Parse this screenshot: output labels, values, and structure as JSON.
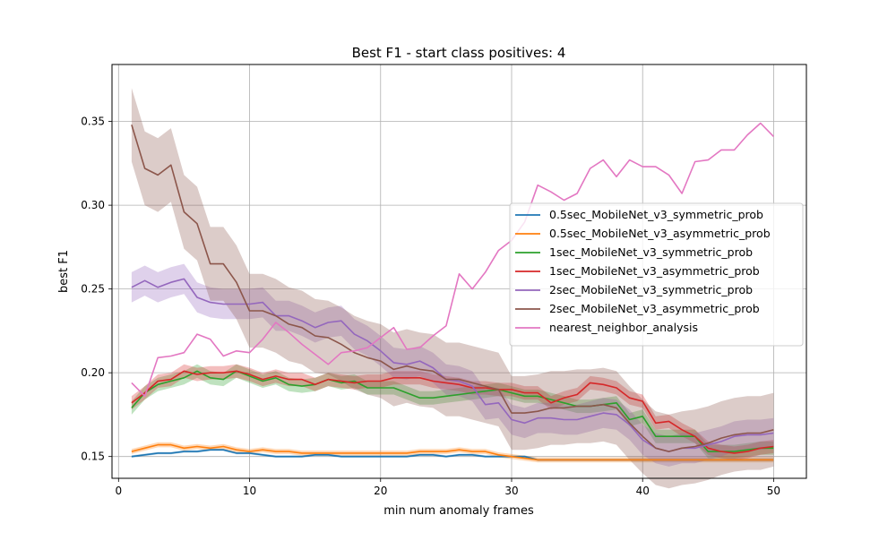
{
  "chart_data": {
    "type": "line",
    "title": "Best F1 - start class positives: 4",
    "xlabel": "min num anomaly frames",
    "ylabel": "best F1",
    "xlim": [
      -0.5,
      52.5
    ],
    "ylim": [
      0.137,
      0.384
    ],
    "x_ticks": [
      0,
      10,
      20,
      30,
      40,
      50
    ],
    "y_ticks": [
      0.15,
      0.2,
      0.25,
      0.3,
      0.35
    ],
    "x_tick_labels": [
      "0",
      "10",
      "20",
      "30",
      "40",
      "50"
    ],
    "y_tick_labels": [
      "0.15",
      "0.20",
      "0.25",
      "0.30",
      "0.35"
    ],
    "grid": true,
    "legend_position": "center-right",
    "x": [
      1,
      2,
      3,
      4,
      5,
      6,
      7,
      8,
      9,
      10,
      11,
      12,
      13,
      14,
      15,
      16,
      17,
      18,
      19,
      20,
      21,
      22,
      23,
      24,
      25,
      26,
      27,
      28,
      29,
      30,
      31,
      32,
      33,
      34,
      35,
      36,
      37,
      38,
      39,
      40,
      41,
      42,
      43,
      44,
      45,
      46,
      47,
      48,
      49,
      50
    ],
    "series": [
      {
        "name": "0.5sec_MobileNet_v3_symmetric_prob",
        "color": "#1f77b4",
        "band": 0.0007,
        "values": [
          0.15,
          0.151,
          0.152,
          0.152,
          0.153,
          0.153,
          0.154,
          0.154,
          0.152,
          0.152,
          0.151,
          0.15,
          0.15,
          0.15,
          0.151,
          0.151,
          0.15,
          0.15,
          0.15,
          0.15,
          0.15,
          0.15,
          0.151,
          0.151,
          0.15,
          0.151,
          0.151,
          0.15,
          0.15,
          0.15,
          0.15,
          0.148,
          0.148,
          0.148,
          0.148,
          0.148,
          0.148,
          0.148,
          0.148,
          0.148,
          0.148,
          0.148,
          0.148,
          0.148,
          0.148,
          0.148,
          0.148,
          0.148,
          0.148,
          0.148
        ]
      },
      {
        "name": "0.5sec_MobileNet_v3_asymmetric_prob",
        "color": "#ff7f0e",
        "band": 0.0015,
        "values": [
          0.153,
          0.155,
          0.157,
          0.157,
          0.155,
          0.156,
          0.155,
          0.156,
          0.154,
          0.153,
          0.154,
          0.153,
          0.153,
          0.152,
          0.152,
          0.152,
          0.152,
          0.152,
          0.152,
          0.152,
          0.152,
          0.152,
          0.153,
          0.153,
          0.153,
          0.154,
          0.153,
          0.153,
          0.151,
          0.15,
          0.149,
          0.148,
          0.148,
          0.148,
          0.148,
          0.148,
          0.148,
          0.148,
          0.148,
          0.148,
          0.148,
          0.148,
          0.148,
          0.148,
          0.148,
          0.148,
          0.148,
          0.148,
          0.148,
          0.148
        ]
      },
      {
        "name": "1sec_MobileNet_v3_symmetric_prob",
        "color": "#2ca02c",
        "band": 0.004,
        "values": [
          0.179,
          0.188,
          0.193,
          0.195,
          0.197,
          0.201,
          0.197,
          0.196,
          0.201,
          0.198,
          0.195,
          0.197,
          0.193,
          0.192,
          0.193,
          0.196,
          0.194,
          0.195,
          0.191,
          0.191,
          0.191,
          0.188,
          0.185,
          0.185,
          0.186,
          0.187,
          0.188,
          0.189,
          0.19,
          0.188,
          0.186,
          0.186,
          0.184,
          0.182,
          0.18,
          0.18,
          0.181,
          0.182,
          0.172,
          0.174,
          0.162,
          0.162,
          0.162,
          0.162,
          0.153,
          0.153,
          0.153,
          0.154,
          0.155,
          0.155
        ]
      },
      {
        "name": "1sec_MobileNet_v3_asymmetric_prob",
        "color": "#d62728",
        "band": 0.004,
        "values": [
          0.182,
          0.188,
          0.195,
          0.196,
          0.201,
          0.199,
          0.2,
          0.2,
          0.201,
          0.199,
          0.196,
          0.198,
          0.196,
          0.196,
          0.193,
          0.196,
          0.195,
          0.194,
          0.195,
          0.195,
          0.197,
          0.197,
          0.197,
          0.195,
          0.194,
          0.193,
          0.191,
          0.191,
          0.19,
          0.19,
          0.188,
          0.188,
          0.182,
          0.185,
          0.187,
          0.194,
          0.193,
          0.191,
          0.185,
          0.183,
          0.17,
          0.171,
          0.166,
          0.162,
          0.155,
          0.153,
          0.152,
          0.153,
          0.155,
          0.156
        ]
      },
      {
        "name": "2sec_MobileNet_v3_symmetric_prob",
        "color": "#9467bd",
        "band": 0.009,
        "values": [
          0.251,
          0.255,
          0.251,
          0.254,
          0.256,
          0.245,
          0.242,
          0.241,
          0.241,
          0.241,
          0.242,
          0.234,
          0.234,
          0.231,
          0.227,
          0.23,
          0.231,
          0.223,
          0.219,
          0.213,
          0.206,
          0.205,
          0.207,
          0.203,
          0.196,
          0.195,
          0.192,
          0.181,
          0.182,
          0.172,
          0.17,
          0.173,
          0.173,
          0.172,
          0.172,
          0.174,
          0.176,
          0.175,
          0.169,
          0.16,
          0.155,
          0.153,
          0.155,
          0.155,
          0.157,
          0.159,
          0.162,
          0.163,
          0.163,
          0.164
        ]
      },
      {
        "name": "2sec_MobileNet_v3_asymmetric_prob",
        "color": "#8c564b",
        "band": 0.022,
        "values": [
          0.348,
          0.322,
          0.318,
          0.324,
          0.296,
          0.289,
          0.265,
          0.265,
          0.254,
          0.237,
          0.237,
          0.234,
          0.229,
          0.227,
          0.222,
          0.221,
          0.217,
          0.212,
          0.209,
          0.207,
          0.202,
          0.204,
          0.202,
          0.201,
          0.196,
          0.196,
          0.194,
          0.192,
          0.19,
          0.176,
          0.176,
          0.177,
          0.179,
          0.179,
          0.18,
          0.18,
          0.181,
          0.179,
          0.17,
          0.162,
          0.155,
          0.153,
          0.155,
          0.156,
          0.158,
          0.161,
          0.163,
          0.164,
          0.164,
          0.166
        ]
      },
      {
        "name": "nearest_neighbor_analysis",
        "color": "#e377c2",
        "band": 0,
        "values": [
          0.194,
          0.186,
          0.209,
          0.21,
          0.212,
          0.223,
          0.22,
          0.21,
          0.213,
          0.212,
          0.22,
          0.23,
          0.224,
          0.217,
          0.211,
          0.205,
          0.212,
          0.213,
          0.215,
          0.221,
          0.227,
          0.214,
          0.215,
          0.222,
          0.228,
          0.259,
          0.25,
          0.26,
          0.273,
          0.279,
          0.29,
          0.312,
          0.308,
          0.303,
          0.307,
          0.322,
          0.327,
          0.317,
          0.327,
          0.323,
          0.323,
          0.318,
          0.307,
          0.326,
          0.327,
          0.333,
          0.333,
          0.342,
          0.349,
          0.341
        ]
      }
    ]
  }
}
